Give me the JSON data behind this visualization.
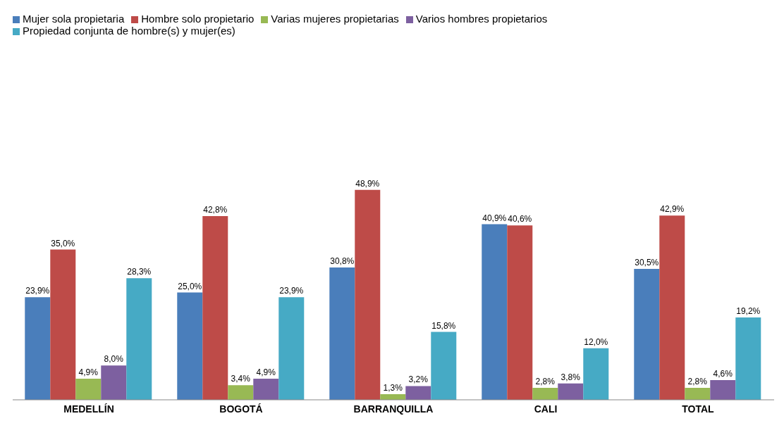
{
  "chart_data": {
    "type": "bar",
    "categories": [
      "MEDELLÍN",
      "BOGOTÁ",
      "BARRANQUILLA",
      "CALI",
      "TOTAL"
    ],
    "series": [
      {
        "name": "Mujer sola propietaria",
        "color": "#4a7ebb",
        "values": [
          23.9,
          25.0,
          30.8,
          40.9,
          30.5
        ],
        "value_labels": [
          "23,9%",
          "25,0%",
          "30,8%",
          "40,9%",
          "30,5%"
        ]
      },
      {
        "name": "Hombre solo propietario",
        "color": "#be4b48",
        "values": [
          35.0,
          42.8,
          48.9,
          40.6,
          42.9
        ],
        "value_labels": [
          "35,0%",
          "42,8%",
          "48,9%",
          "40,6%",
          "42,9%"
        ]
      },
      {
        "name": "Varias mujeres propietarias",
        "color": "#98b954",
        "values": [
          4.9,
          3.4,
          1.3,
          2.8,
          2.8
        ],
        "value_labels": [
          "4,9%",
          "3,4%",
          "1,3%",
          "2,8%",
          "2,8%"
        ]
      },
      {
        "name": "Varios hombres  propietarios",
        "color": "#7d60a0",
        "values": [
          8.0,
          4.9,
          3.2,
          3.8,
          4.6
        ],
        "value_labels": [
          "8,0%",
          "4,9%",
          "3,2%",
          "3,8%",
          "4,6%"
        ]
      },
      {
        "name": "Propiedad conjunta de hombre(s) y mujer(es)",
        "color": "#46aac5",
        "values": [
          28.3,
          23.9,
          15.8,
          12.0,
          19.2
        ],
        "value_labels": [
          "28,3%",
          "23,9%",
          "15,8%",
          "12,0%",
          "19,2%"
        ]
      }
    ],
    "grid": false,
    "legend": "top left"
  }
}
